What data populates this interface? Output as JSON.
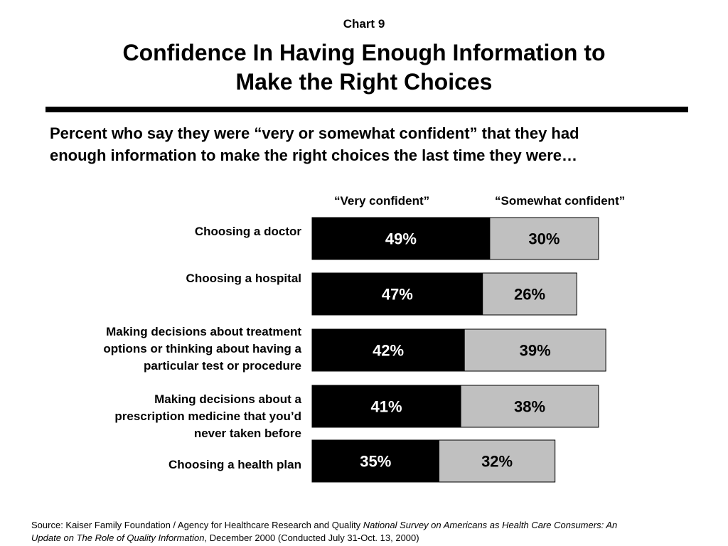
{
  "header": {
    "chart_number": "Chart 9",
    "title_line1": "Confidence In Having Enough Information to",
    "title_line2": "Make the Right Choices"
  },
  "subtitle": {
    "line1": "Percent who say they were “very or somewhat confident” that they had",
    "line2": "enough information to make the right choices the last time they were…"
  },
  "legend": {
    "very": "“Very confident”",
    "somewhat": "“Somewhat confident”"
  },
  "colors": {
    "very": "#000000",
    "somewhat": "#c0c0c0",
    "very_text": "#ffffff",
    "somewhat_text": "#000000"
  },
  "chart_data": {
    "type": "bar",
    "orientation": "horizontal",
    "stacked": true,
    "categories": [
      "Choosing a doctor",
      "Choosing a hospital",
      "Making decisions about treatment\noptions or thinking about having a\nparticular test or procedure",
      "Making decisions about a\nprescription medicine that you’d\nnever taken before",
      "Choosing a health plan"
    ],
    "series": [
      {
        "name": "“Very confident”",
        "values": [
          49,
          47,
          42,
          41,
          35
        ],
        "labels": [
          "49%",
          "47%",
          "42%",
          "41%",
          "35%"
        ]
      },
      {
        "name": "“Somewhat confident”",
        "values": [
          30,
          26,
          39,
          38,
          32
        ],
        "labels": [
          "30%",
          "26%",
          "39%",
          "38%",
          "32%"
        ]
      }
    ],
    "unit": "%",
    "xlim": [
      0,
      100
    ],
    "grid": false,
    "axes_visible": false,
    "legend_placement": "top"
  },
  "source": {
    "prefix": "Source: Kaiser Family Foundation / Agency for Healthcare Research and Quality ",
    "title_italic_1": "National Survey on Americans as Health Care Consumers:  An",
    "title_italic_2": "Update on The Role of Quality Information",
    "suffix": ", December 2000 (Conducted July 31-Oct. 13, 2000)"
  }
}
